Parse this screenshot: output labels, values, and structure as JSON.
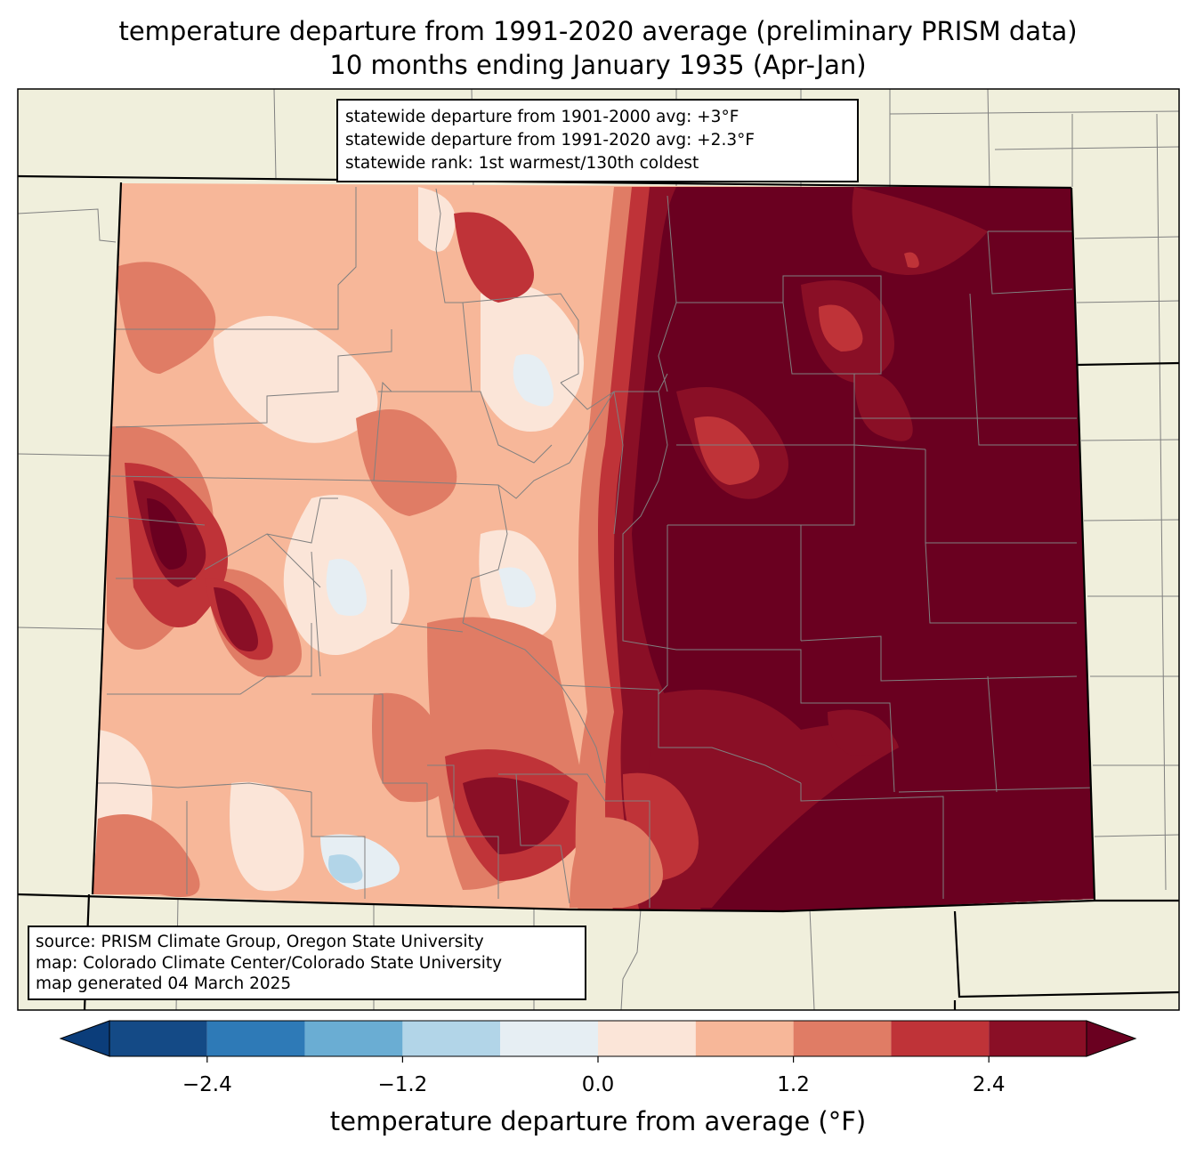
{
  "title_line1": "temperature departure from 1991-2020 average (preliminary PRISM data)",
  "title_line2": "10 months ending January 1935 (Apr-Jan)",
  "stats": {
    "line1": "statewide departure from 1901-2000 avg: +3°F",
    "line2": "statewide departure from 1991-2020 avg: +2.3°F",
    "line3": "statewide rank: 1st warmest/130th coldest"
  },
  "source": {
    "line1": "source: PRISM Climate Group, Oregon State University",
    "line2": "map: Colorado Climate Center/Colorado State University",
    "line3": "map generated 04 March 2025"
  },
  "colorbar": {
    "label": "temperature departure from average (°F)",
    "ticks": [
      "−2.4",
      "−1.2",
      "0.0",
      "1.2",
      "2.4"
    ],
    "tick_values": [
      -2.4,
      -1.2,
      0.0,
      1.2,
      2.4
    ],
    "levels": [
      -3.0,
      -2.4,
      -1.8,
      -1.2,
      -0.6,
      0.0,
      0.6,
      1.2,
      1.8,
      2.4,
      3.0
    ],
    "colors": [
      "#0b3d7a",
      "#144a86",
      "#2e7ab7",
      "#6aadd3",
      "#b2d5e8",
      "#e6eef3",
      "#fbe5d8",
      "#f7b799",
      "#e07c65",
      "#bf3338",
      "#8a0f26",
      "#6a0020"
    ],
    "extend": "both"
  },
  "map_colors": {
    "background": "#f0efdc",
    "county_lines": "#808080",
    "state_lines": "#000000"
  }
}
